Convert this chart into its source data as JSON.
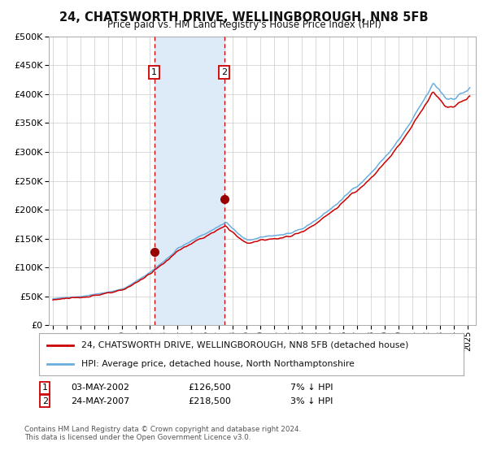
{
  "title": "24, CHATSWORTH DRIVE, WELLINGBOROUGH, NN8 5FB",
  "subtitle": "Price paid vs. HM Land Registry's House Price Index (HPI)",
  "legend_line1": "24, CHATSWORTH DRIVE, WELLINGBOROUGH, NN8 5FB (detached house)",
  "legend_line2": "HPI: Average price, detached house, North Northamptonshire",
  "footer": "Contains HM Land Registry data © Crown copyright and database right 2024.\nThis data is licensed under the Open Government Licence v3.0.",
  "sale1_date": "03-MAY-2002",
  "sale1_price": 126500,
  "sale1_label": "7% ↓ HPI",
  "sale2_date": "24-MAY-2007",
  "sale2_price": 218500,
  "sale2_label": "3% ↓ HPI",
  "hpi_color": "#6aaee0",
  "price_color": "#cc0000",
  "marker_color": "#990000",
  "vline_color": "#cc0000",
  "shade_color": "#ddeaf7",
  "grid_color": "#cccccc",
  "background_color": "#ffffff",
  "plot_bg_color": "#ffffff",
  "ylim": [
    0,
    500000
  ],
  "yticks": [
    0,
    50000,
    100000,
    150000,
    200000,
    250000,
    300000,
    350000,
    400000,
    450000,
    500000
  ],
  "sale1_x": 2002.33,
  "sale2_x": 2007.39
}
